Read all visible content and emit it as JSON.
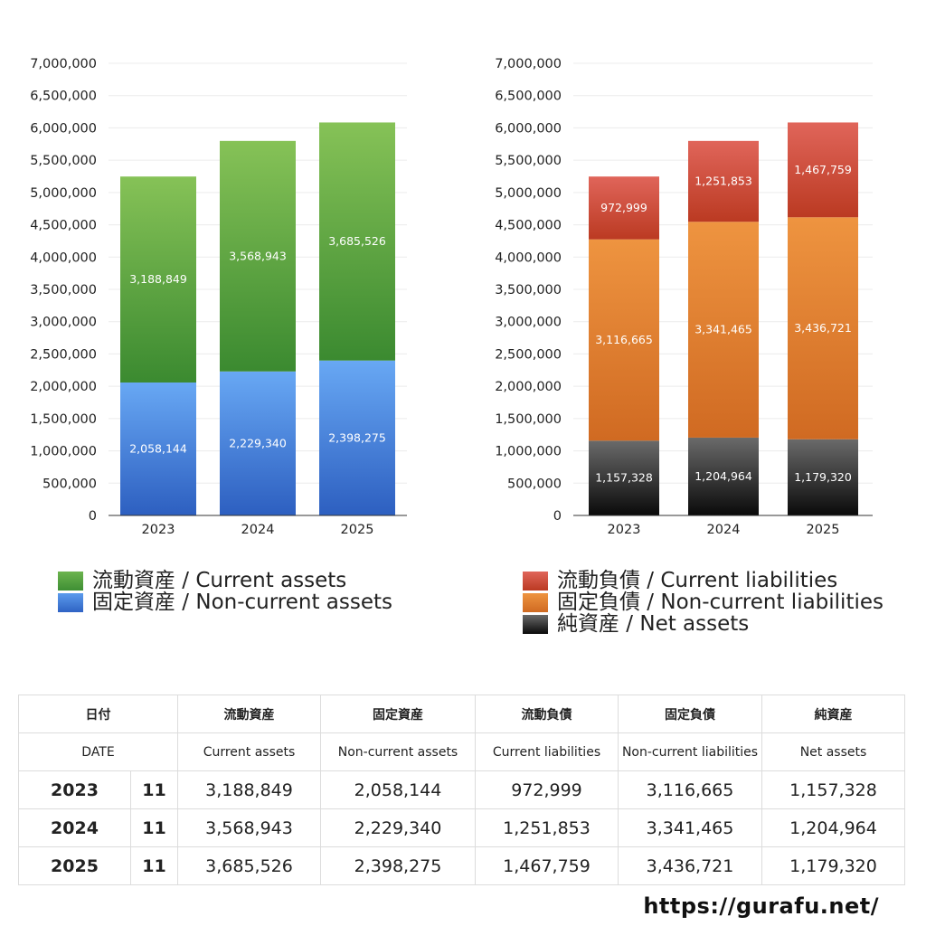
{
  "chart_data": [
    {
      "type": "bar",
      "stacked": true,
      "categories": [
        "2023",
        "2024",
        "2025"
      ],
      "ylim": [
        0,
        7000000
      ],
      "yticks": [
        0,
        500000,
        1000000,
        1500000,
        2000000,
        2500000,
        3000000,
        3500000,
        4000000,
        4500000,
        5000000,
        5500000,
        6000000,
        6500000,
        7000000
      ],
      "ytick_labels": [
        "0",
        "500,000",
        "1,000,000",
        "1,500,000",
        "2,000,000",
        "2,500,000",
        "3,000,000",
        "3,500,000",
        "4,000,000",
        "4,500,000",
        "5,000,000",
        "5,500,000",
        "6,000,000",
        "6,500,000",
        "7,000,000"
      ],
      "grid": true,
      "legend_position": "bottom",
      "series": [
        {
          "name": "固定資産 / Non-current assets",
          "values": [
            2058144,
            2229340,
            2398275
          ],
          "labels": [
            "2,058,144",
            "2,229,340",
            "2,398,275"
          ],
          "color_top": "#68a8f4",
          "color_bottom": "#2d5fc0"
        },
        {
          "name": "流動資産 / Current assets",
          "values": [
            3188849,
            3568943,
            3685526
          ],
          "labels": [
            "3,188,849",
            "3,568,943",
            "3,685,526"
          ],
          "color_top": "#86c257",
          "color_bottom": "#3b8a30"
        }
      ]
    },
    {
      "type": "bar",
      "stacked": true,
      "categories": [
        "2023",
        "2024",
        "2025"
      ],
      "ylim": [
        0,
        7000000
      ],
      "yticks": [
        0,
        500000,
        1000000,
        1500000,
        2000000,
        2500000,
        3000000,
        3500000,
        4000000,
        4500000,
        5000000,
        5500000,
        6000000,
        6500000,
        7000000
      ],
      "ytick_labels": [
        "0",
        "500,000",
        "1,000,000",
        "1,500,000",
        "2,000,000",
        "2,500,000",
        "3,000,000",
        "3,500,000",
        "4,000,000",
        "4,500,000",
        "5,000,000",
        "5,500,000",
        "6,000,000",
        "6,500,000",
        "7,000,000"
      ],
      "grid": true,
      "legend_position": "bottom",
      "series": [
        {
          "name": "純資産 / Net assets",
          "values": [
            1157328,
            1204964,
            1179320
          ],
          "labels": [
            "1,157,328",
            "1,204,964",
            "1,179,320"
          ],
          "color_top": "#6a6a6a",
          "color_bottom": "#0a0a0a"
        },
        {
          "name": "固定負債 / Non-current liabilities",
          "values": [
            3116665,
            3341465,
            3436721
          ],
          "labels": [
            "3,116,665",
            "3,341,465",
            "3,436,721"
          ],
          "color_top": "#ee9440",
          "color_bottom": "#d06a22"
        },
        {
          "name": "流動負債 / Current liabilities",
          "values": [
            972999,
            1251853,
            1467759
          ],
          "labels": [
            "972,999",
            "1,251,853",
            "1,467,759"
          ],
          "color_top": "#e0655a",
          "color_bottom": "#bb3a22"
        }
      ]
    }
  ],
  "legend_left": [
    {
      "label": "流動資産 / Current assets",
      "color": "#5aa845"
    },
    {
      "label": "固定資産 / Non-current assets",
      "color": "#3f7fd8"
    }
  ],
  "legend_right": [
    {
      "label": "流動負債 / Current liabilities",
      "color": "#cf4a38"
    },
    {
      "label": "固定負債 / Non-current liabilities",
      "color": "#e38a3a"
    },
    {
      "label": "純資産 / Net assets",
      "color": "#2a2a2a"
    }
  ],
  "table": {
    "header_jp": {
      "date": "日付",
      "cols": [
        "流動資産",
        "固定資産",
        "流動負債",
        "固定負債",
        "純資産"
      ]
    },
    "header_en": {
      "date": "DATE",
      "cols": [
        "Current assets",
        "Non-current assets",
        "Current liabilities",
        "Non-current liabilities",
        "Net assets"
      ]
    },
    "rows": [
      {
        "year": "2023",
        "month": "11",
        "values": [
          "3,188,849",
          "2,058,144",
          "972,999",
          "3,116,665",
          "1,157,328"
        ]
      },
      {
        "year": "2024",
        "month": "11",
        "values": [
          "3,568,943",
          "2,229,340",
          "1,251,853",
          "3,341,465",
          "1,204,964"
        ]
      },
      {
        "year": "2025",
        "month": "11",
        "values": [
          "3,685,526",
          "2,398,275",
          "1,467,759",
          "3,436,721",
          "1,179,320"
        ]
      }
    ]
  },
  "footer": {
    "url": "https://gurafu.net/"
  }
}
